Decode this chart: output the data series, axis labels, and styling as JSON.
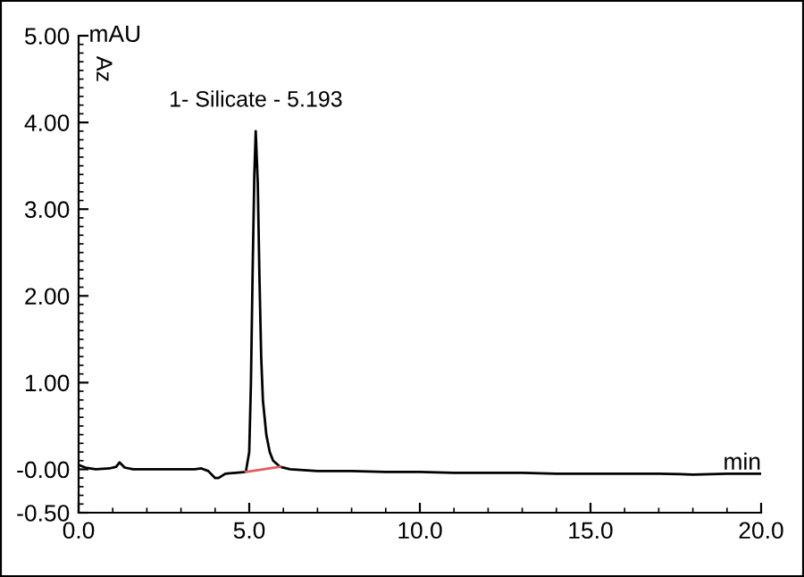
{
  "chart_data": {
    "type": "line",
    "xlabel": "min",
    "ylabel": "mAU",
    "annotations": [
      "Az",
      {
        "text": "1- Silicate - 5.193",
        "x": 5.193,
        "y": 3.9
      }
    ],
    "series": [
      {
        "color": "#000000",
        "x": [
          0.0,
          0.2,
          0.5,
          0.9,
          1.1,
          1.2,
          1.35,
          1.6,
          2.0,
          2.5,
          3.0,
          3.4,
          3.6,
          3.8,
          4.0,
          4.1,
          4.3,
          4.6,
          4.9,
          5.0,
          5.05,
          5.1,
          5.15,
          5.19,
          5.25,
          5.3,
          5.35,
          5.4,
          5.5,
          5.6,
          5.7,
          5.9,
          6.2,
          7.0,
          8.0,
          9.0,
          10.0,
          11.0,
          12.0,
          13.0,
          14.0,
          15.0,
          16.0,
          17.0,
          18.0,
          19.0,
          20.0
        ],
        "values": [
          0.05,
          0.02,
          0.0,
          0.01,
          0.03,
          0.08,
          0.02,
          0.0,
          0.0,
          0.0,
          0.0,
          0.0,
          0.01,
          -0.02,
          -0.1,
          -0.1,
          -0.05,
          -0.04,
          -0.03,
          0.2,
          1.0,
          2.3,
          3.4,
          3.9,
          3.3,
          2.2,
          1.3,
          0.8,
          0.4,
          0.2,
          0.1,
          0.03,
          0.0,
          -0.02,
          -0.02,
          -0.03,
          -0.03,
          -0.04,
          -0.04,
          -0.04,
          -0.05,
          -0.05,
          -0.05,
          -0.05,
          -0.06,
          -0.05,
          -0.05
        ]
      },
      {
        "color": "#e06060",
        "x": [
          4.9,
          5.9
        ],
        "values": [
          -0.03,
          0.03
        ]
      }
    ],
    "xlim": [
      0.0,
      20.0
    ],
    "xticks": [
      {
        "value": 0,
        "label": "0.0"
      },
      {
        "value": 5,
        "label": "5.0"
      },
      {
        "value": 10,
        "label": "10.0"
      },
      {
        "value": 15,
        "label": "15.0"
      },
      {
        "value": 20,
        "label": "20.0"
      }
    ],
    "ylim": [
      -0.5,
      5.0
    ],
    "yticks": [
      {
        "value": -0.5,
        "label": "-0.50"
      },
      {
        "value": 0,
        "label": "-0.00"
      },
      {
        "value": 1,
        "label": "1.00"
      },
      {
        "value": 2,
        "label": "2.00"
      },
      {
        "value": 3,
        "label": "3.00"
      },
      {
        "value": 4,
        "label": "4.00"
      },
      {
        "value": 5,
        "label": "5.00"
      }
    ],
    "grid": false,
    "legend": false
  }
}
